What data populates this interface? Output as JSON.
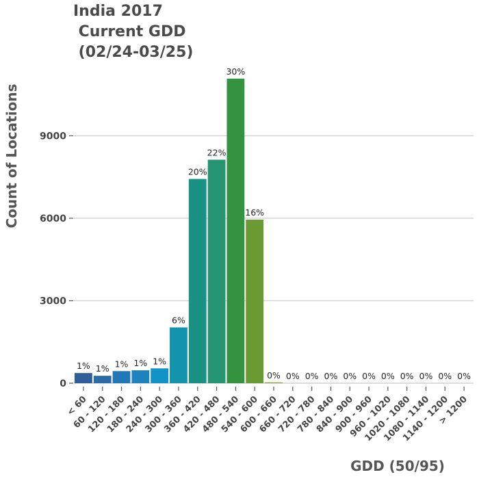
{
  "chart_data": {
    "type": "bar",
    "title_lines": [
      "India 2017",
      " Current GDD",
      " (02/24-03/25)"
    ],
    "xlabel": "GDD (50/95)",
    "ylabel": "Count of Locations",
    "ylim": [
      0,
      11500
    ],
    "yticks": [
      0,
      3000,
      6000,
      9000
    ],
    "ytick_labels": [
      "0",
      "3000",
      "6000",
      "9000"
    ],
    "grid": "horizontal",
    "legend": "none",
    "categories": [
      "< 60",
      "60 - 120",
      "120 - 180",
      "180 - 240",
      "240 - 300",
      "300 - 360",
      "360 - 420",
      "420 - 480",
      "480 - 540",
      "540 - 600",
      "600 - 660",
      "660 - 720",
      "720 - 780",
      "780 - 840",
      "840 - 900",
      "900 - 960",
      "960 - 1020",
      "1020 - 1080",
      "1080 - 1140",
      "1140 - 1200",
      "> 1200"
    ],
    "values": [
      370,
      270,
      440,
      470,
      540,
      2030,
      7430,
      8130,
      11080,
      5950,
      30,
      0,
      0,
      0,
      0,
      0,
      0,
      0,
      0,
      0,
      0
    ],
    "data_labels": [
      "1%",
      "1%",
      "1%",
      "1%",
      "1%",
      "6%",
      "20%",
      "22%",
      "30%",
      "16%",
      "0%",
      "0%",
      "0%",
      "0%",
      "0%",
      "0%",
      "0%",
      "0%",
      "0%",
      "0%",
      "0%"
    ],
    "colors": [
      "#2f5f9b",
      "#2a6ba8",
      "#2278b6",
      "#1f83c0",
      "#1193c8",
      "#1394ac",
      "#1a9283",
      "#249570",
      "#33933f",
      "#6b9a33",
      "#8d9b2c",
      "#9a9a2a",
      "#9a9a2a",
      "#9a9a2a",
      "#9a9a2a",
      "#9a9a2a",
      "#9a9a2a",
      "#9a9a2a",
      "#9a9a2a",
      "#9a9a2a",
      "#9a9a2a"
    ]
  }
}
